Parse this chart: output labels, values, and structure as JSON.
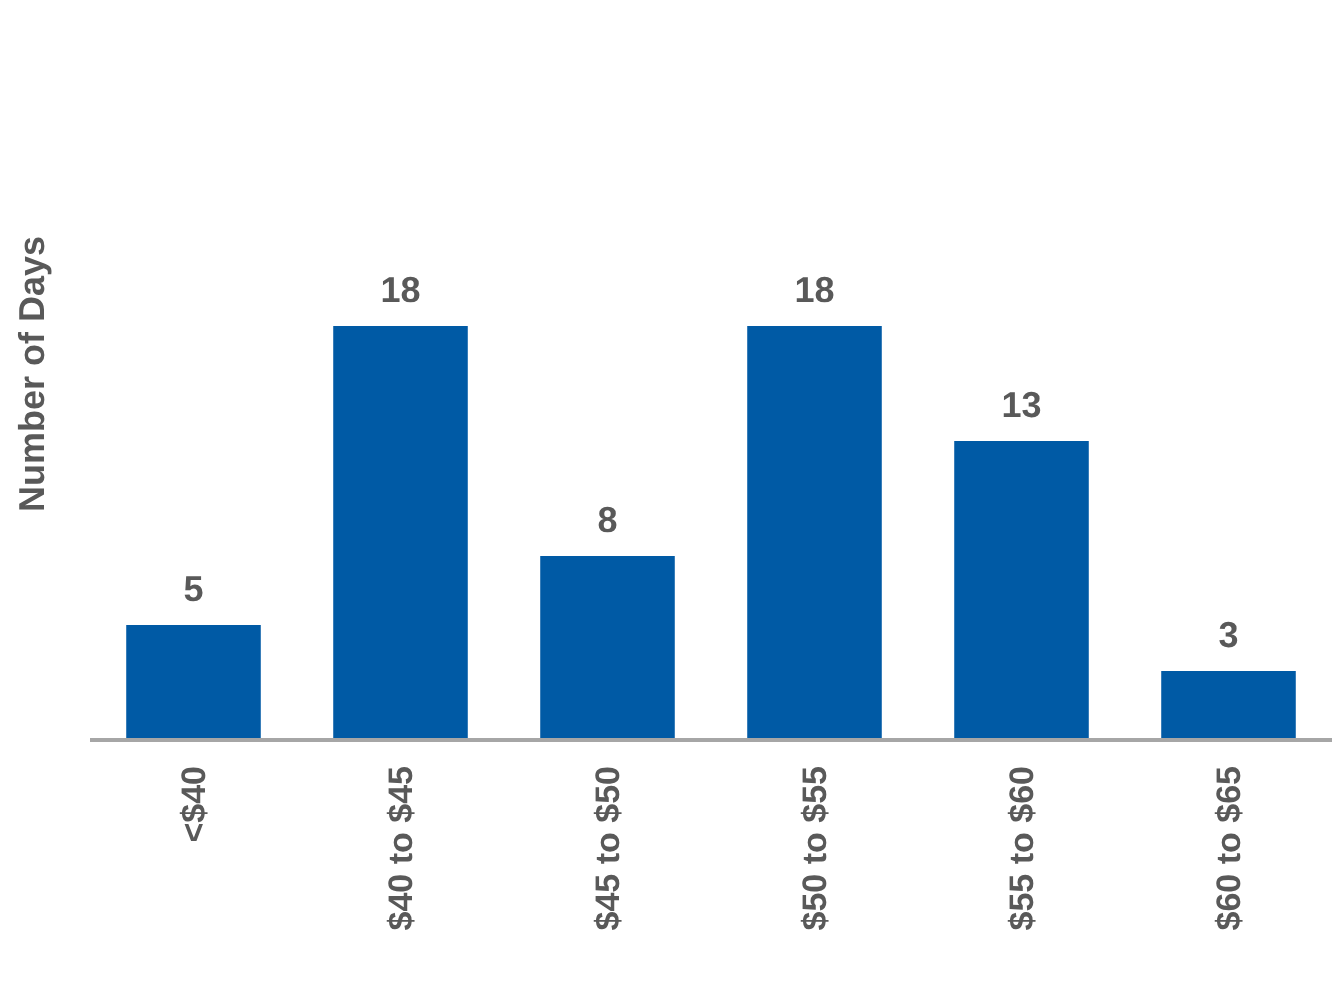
{
  "chart_data": {
    "type": "bar",
    "ylabel": "Number of Days",
    "categories": [
      "<$40",
      "$40 to $45",
      "$45 to $50",
      "$50 to $55",
      "$55 to $60",
      "$60 to $65"
    ],
    "values": [
      5,
      18,
      8,
      18,
      13,
      3
    ],
    "color": "#005aa5",
    "data_labels": true
  }
}
